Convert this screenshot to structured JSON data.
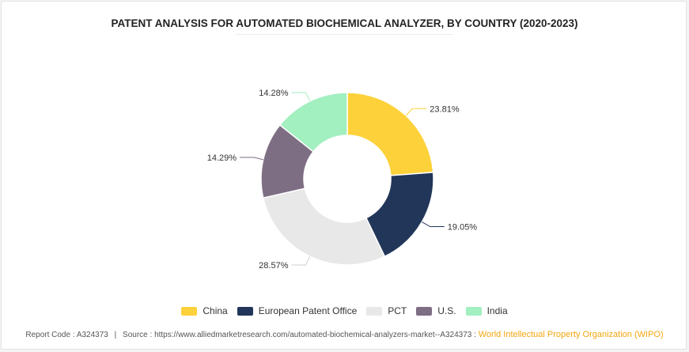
{
  "title": "PATENT ANALYSIS FOR AUTOMATED BIOCHEMICAL ANALYZER, BY COUNTRY (2020-2023)",
  "chart_data": {
    "type": "pie",
    "donut": true,
    "title": "PATENT ANALYSIS FOR AUTOMATED BIOCHEMICAL ANALYZER, BY COUNTRY (2020-2023)",
    "categories": [
      "China",
      "European Patent Office",
      "PCT",
      "U.S.",
      "India"
    ],
    "values": [
      23.81,
      19.05,
      28.57,
      14.29,
      14.28
    ],
    "labels": [
      "23.81%",
      "19.05%",
      "28.57%",
      "14.29%",
      "14.28%"
    ],
    "colors": [
      "#fdd13a",
      "#22365a",
      "#e8e8e8",
      "#7e6e84",
      "#a2efc0"
    ],
    "legend_position": "bottom"
  },
  "footer": {
    "report_code": "Report Code : A324373",
    "separator": "|",
    "source": "Source : https://www.alliedmarketresearch.com/automated-biochemical-analyzers-market--A324373 :",
    "organization": "World Intellectual Property Organization (WIPO)"
  }
}
